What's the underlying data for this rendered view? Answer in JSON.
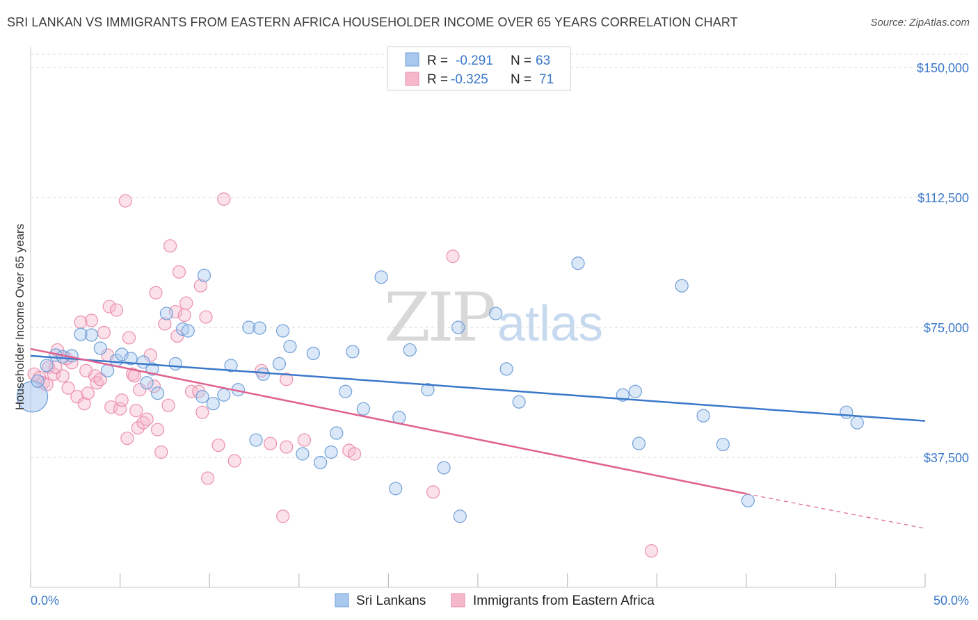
{
  "title": "SRI LANKAN VS IMMIGRANTS FROM EASTERN AFRICA HOUSEHOLDER INCOME OVER 65 YEARS CORRELATION CHART",
  "source": "Source: ZipAtlas.com",
  "watermark": {
    "zip": "ZIP",
    "atlas": "atlas"
  },
  "colors": {
    "blue": "#3a78c9",
    "blue_fill": "#a9c8ee",
    "blue_stroke": "#6f9fd8",
    "pink": "#e0608e",
    "pink_fill": "#f5b8cb",
    "pink_stroke": "#ec8fae",
    "grid": "#d9d9d9",
    "axis_text": "#3a78c9"
  },
  "legend": {
    "rows": [
      {
        "r_label": "R =",
        "r_value": "-0.291",
        "n_label": "N =",
        "n_value": "63"
      },
      {
        "r_label": "R =",
        "r_value": "-0.325",
        "n_label": "N =",
        "n_value": "71"
      }
    ]
  },
  "bottom_legend": [
    "Sri Lankans",
    "Immigrants from Eastern Africa"
  ],
  "chart_data": {
    "type": "scatter",
    "title": "SRI LANKAN VS IMMIGRANTS FROM EASTERN AFRICA HOUSEHOLDER INCOME OVER 65 YEARS CORRELATION CHART",
    "xlabel": "",
    "ylabel": "Householder Income Over 65 years",
    "xlim": [
      0,
      50
    ],
    "ylim": [
      0,
      150000
    ],
    "x_tick_labels": [
      "0.0%",
      "50.0%"
    ],
    "y_ticks": [
      37500,
      75000,
      112500,
      150000
    ],
    "y_tick_labels": [
      "$37,500",
      "$75,000",
      "$112,500",
      "$150,000"
    ],
    "grid": true,
    "legend_position": "top-center",
    "series": [
      {
        "name": "Sri Lankans",
        "color": "#3a78c9",
        "trend": {
          "x": [
            0,
            50
          ],
          "y": [
            66800,
            48000
          ]
        },
        "points": [
          {
            "x": 0.1,
            "y": 55000,
            "big": true
          },
          {
            "x": 0.4,
            "y": 59500
          },
          {
            "x": 0.9,
            "y": 64000
          },
          {
            "x": 1.4,
            "y": 67000
          },
          {
            "x": 1.8,
            "y": 66500
          },
          {
            "x": 2.3,
            "y": 66800
          },
          {
            "x": 2.8,
            "y": 73000
          },
          {
            "x": 3.4,
            "y": 72800
          },
          {
            "x": 3.9,
            "y": 69000
          },
          {
            "x": 4.3,
            "y": 62500
          },
          {
            "x": 4.8,
            "y": 65500
          },
          {
            "x": 5.1,
            "y": 67200
          },
          {
            "x": 5.6,
            "y": 66000
          },
          {
            "x": 6.3,
            "y": 65000
          },
          {
            "x": 6.5,
            "y": 59000
          },
          {
            "x": 6.8,
            "y": 63000
          },
          {
            "x": 7.1,
            "y": 56000
          },
          {
            "x": 7.6,
            "y": 79000
          },
          {
            "x": 8.1,
            "y": 64500
          },
          {
            "x": 8.5,
            "y": 74500
          },
          {
            "x": 8.8,
            "y": 74000
          },
          {
            "x": 9.6,
            "y": 55000
          },
          {
            "x": 9.7,
            "y": 90000
          },
          {
            "x": 10.2,
            "y": 53000
          },
          {
            "x": 10.8,
            "y": 55500
          },
          {
            "x": 11.2,
            "y": 64000
          },
          {
            "x": 11.6,
            "y": 57000
          },
          {
            "x": 12.2,
            "y": 75000
          },
          {
            "x": 12.6,
            "y": 42500
          },
          {
            "x": 12.8,
            "y": 74800
          },
          {
            "x": 13.0,
            "y": 61500
          },
          {
            "x": 13.9,
            "y": 64500
          },
          {
            "x": 14.1,
            "y": 74000
          },
          {
            "x": 14.5,
            "y": 69500
          },
          {
            "x": 15.2,
            "y": 38500
          },
          {
            "x": 15.8,
            "y": 67500
          },
          {
            "x": 16.2,
            "y": 36000
          },
          {
            "x": 16.8,
            "y": 39000
          },
          {
            "x": 17.1,
            "y": 44500
          },
          {
            "x": 17.6,
            "y": 56500
          },
          {
            "x": 18.0,
            "y": 68000
          },
          {
            "x": 18.6,
            "y": 51500
          },
          {
            "x": 19.6,
            "y": 89500
          },
          {
            "x": 20.4,
            "y": 28500
          },
          {
            "x": 20.6,
            "y": 49000
          },
          {
            "x": 21.2,
            "y": 68500
          },
          {
            "x": 22.2,
            "y": 57000
          },
          {
            "x": 23.1,
            "y": 34500
          },
          {
            "x": 23.9,
            "y": 75000
          },
          {
            "x": 24.0,
            "y": 20500
          },
          {
            "x": 26.0,
            "y": 79000
          },
          {
            "x": 26.6,
            "y": 63000
          },
          {
            "x": 27.3,
            "y": 53500
          },
          {
            "x": 30.6,
            "y": 93500
          },
          {
            "x": 33.1,
            "y": 55500
          },
          {
            "x": 34.0,
            "y": 41500
          },
          {
            "x": 33.8,
            "y": 56500
          },
          {
            "x": 36.4,
            "y": 87000
          },
          {
            "x": 37.6,
            "y": 49500
          },
          {
            "x": 38.7,
            "y": 41200
          },
          {
            "x": 40.1,
            "y": 25000
          },
          {
            "x": 45.6,
            "y": 50500
          },
          {
            "x": 46.2,
            "y": 47500
          }
        ]
      },
      {
        "name": "Immigrants from Eastern Africa",
        "color": "#e0608e",
        "trend": {
          "x": [
            0,
            40
          ],
          "y": [
            68800,
            27000
          ]
        },
        "trend_dashed": {
          "x": [
            40,
            50
          ],
          "y": [
            27000,
            17000
          ]
        },
        "points": [
          {
            "x": 0.2,
            "y": 61500
          },
          {
            "x": 0.5,
            "y": 60500
          },
          {
            "x": 0.7,
            "y": 59000
          },
          {
            "x": 1.0,
            "y": 63500
          },
          {
            "x": 1.3,
            "y": 61500
          },
          {
            "x": 1.5,
            "y": 68500
          },
          {
            "x": 1.8,
            "y": 61000
          },
          {
            "x": 2.1,
            "y": 57500
          },
          {
            "x": 2.3,
            "y": 64800
          },
          {
            "x": 2.6,
            "y": 55000
          },
          {
            "x": 2.8,
            "y": 76500
          },
          {
            "x": 3.0,
            "y": 53000
          },
          {
            "x": 3.2,
            "y": 56000
          },
          {
            "x": 3.1,
            "y": 62500
          },
          {
            "x": 3.4,
            "y": 77000
          },
          {
            "x": 3.6,
            "y": 61000
          },
          {
            "x": 3.7,
            "y": 59000
          },
          {
            "x": 3.9,
            "y": 60000
          },
          {
            "x": 4.1,
            "y": 73500
          },
          {
            "x": 4.3,
            "y": 67000
          },
          {
            "x": 4.4,
            "y": 81000
          },
          {
            "x": 4.5,
            "y": 52000
          },
          {
            "x": 4.8,
            "y": 80000
          },
          {
            "x": 5.0,
            "y": 51500
          },
          {
            "x": 5.1,
            "y": 54000
          },
          {
            "x": 5.3,
            "y": 111500
          },
          {
            "x": 5.4,
            "y": 43000
          },
          {
            "x": 5.5,
            "y": 72000
          },
          {
            "x": 5.7,
            "y": 61500
          },
          {
            "x": 5.9,
            "y": 51000
          },
          {
            "x": 6.0,
            "y": 46000
          },
          {
            "x": 6.3,
            "y": 47500
          },
          {
            "x": 6.5,
            "y": 48500
          },
          {
            "x": 6.7,
            "y": 67000
          },
          {
            "x": 6.9,
            "y": 58000
          },
          {
            "x": 7.0,
            "y": 85000
          },
          {
            "x": 7.1,
            "y": 45500
          },
          {
            "x": 7.3,
            "y": 39000
          },
          {
            "x": 7.5,
            "y": 76000
          },
          {
            "x": 7.7,
            "y": 52500
          },
          {
            "x": 7.8,
            "y": 98500
          },
          {
            "x": 8.1,
            "y": 79500
          },
          {
            "x": 8.2,
            "y": 72500
          },
          {
            "x": 8.3,
            "y": 91000
          },
          {
            "x": 8.6,
            "y": 78500
          },
          {
            "x": 8.7,
            "y": 82000
          },
          {
            "x": 9.0,
            "y": 56500
          },
          {
            "x": 9.4,
            "y": 56500
          },
          {
            "x": 9.5,
            "y": 87000
          },
          {
            "x": 9.6,
            "y": 50500
          },
          {
            "x": 9.8,
            "y": 78000
          },
          {
            "x": 9.9,
            "y": 31500
          },
          {
            "x": 10.5,
            "y": 41000
          },
          {
            "x": 10.8,
            "y": 112000
          },
          {
            "x": 11.4,
            "y": 36500
          },
          {
            "x": 12.9,
            "y": 62500
          },
          {
            "x": 13.4,
            "y": 41500
          },
          {
            "x": 14.1,
            "y": 20500
          },
          {
            "x": 14.3,
            "y": 40500
          },
          {
            "x": 14.3,
            "y": 60000
          },
          {
            "x": 15.3,
            "y": 42500
          },
          {
            "x": 17.8,
            "y": 39500
          },
          {
            "x": 18.1,
            "y": 38500
          },
          {
            "x": 22.5,
            "y": 27500
          },
          {
            "x": 23.6,
            "y": 95500
          },
          {
            "x": 34.7,
            "y": 10500
          },
          {
            "x": 1.4,
            "y": 63500
          },
          {
            "x": 2.0,
            "y": 66000
          },
          {
            "x": 0.9,
            "y": 58500
          },
          {
            "x": 6.1,
            "y": 57000
          },
          {
            "x": 5.8,
            "y": 61000
          }
        ]
      }
    ]
  }
}
